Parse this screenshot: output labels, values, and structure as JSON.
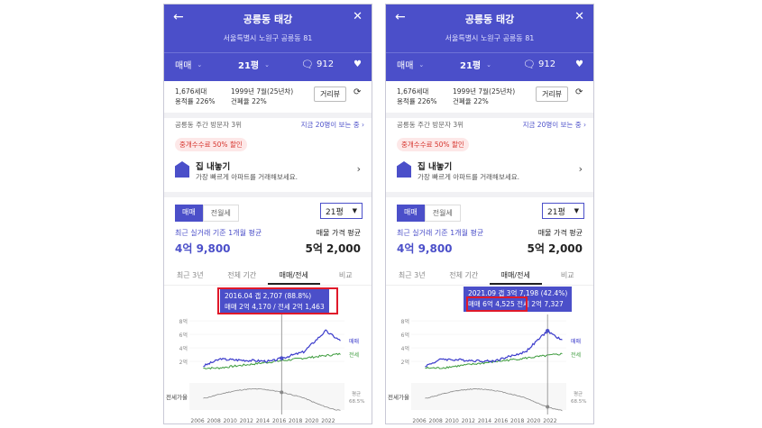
{
  "panels": [
    {
      "header": {
        "title": "공릉동 태강",
        "address": "서울특별시 노원구 공릉동 81",
        "trade_type": "매매",
        "area": "21평",
        "comments": "912"
      },
      "info": {
        "households": "1,676세대",
        "far": "용적률 226%",
        "built": "1999년 7월(25년차)",
        "bcr": "건폐율 22%",
        "distance_btn": "거리뷰"
      },
      "visit": {
        "rank": "공릉동 주간 방문자 3위",
        "now": "지금 20명이 보는 중"
      },
      "promo": "중개수수료 50% 할인",
      "sell": {
        "title": "집 내놓기",
        "desc": "가장 빠르게 아파트를 거래해보세요."
      },
      "trade_tabs": [
        "매매",
        "전월세"
      ],
      "area_select": "21평",
      "avg_label": "최근 실거래 기준 1개월 평균",
      "avg_value": "4억 9,800",
      "ask_label": "매물 가격 평균",
      "ask_value": "5억 2,000",
      "period_tabs": [
        "최근 3년",
        "전체 기간",
        "매매/전세",
        "비교"
      ],
      "active_period_tab": 2,
      "tooltip": {
        "line1": "2016.04  갭 2,707 (88.8%)",
        "line2": "매매 2억 4,170 / 전세 2억 1,463"
      },
      "cursor_year": 2016.3
    },
    {
      "header": {
        "title": "공릉동 태강",
        "address": "서울특별시 노원구 공릉동 81",
        "trade_type": "매매",
        "area": "21평",
        "comments": "912"
      },
      "info": {
        "households": "1,676세대",
        "far": "용적률 226%",
        "built": "1999년 7월(25년차)",
        "bcr": "건폐율 22%",
        "distance_btn": "거리뷰"
      },
      "visit": {
        "rank": "공릉동 주간 방문자 3위",
        "now": "지금 20명이 보는 중"
      },
      "promo": "중개수수료 50% 할인",
      "sell": {
        "title": "집 내놓기",
        "desc": "가장 빠르게 아파트를 거래해보세요."
      },
      "trade_tabs": [
        "매매",
        "전월세"
      ],
      "area_select": "21평",
      "avg_label": "최근 실거래 기준 1개월 평균",
      "avg_value": "4억 9,800",
      "ask_label": "매물 가격 평균",
      "ask_value": "5억 2,000",
      "period_tabs": [
        "최근 3년",
        "전체 기간",
        "매매/전세",
        "비교"
      ],
      "active_period_tab": 2,
      "tooltip": {
        "line1": "2021.09  갭 3억 7,198 (42.4%)",
        "line2a": "매매 6억 4,525",
        "line2b": " 전세 2억 7,327"
      },
      "cursor_year": 2021.7
    }
  ],
  "chart_axes": {
    "y_ticks": [
      "8억",
      "6억",
      "4억",
      "2억"
    ],
    "x_ticks": [
      "2006",
      "2008",
      "2010",
      "2012",
      "2014",
      "2016",
      "2018",
      "2020",
      "2022"
    ],
    "ratio_label": "전세가율",
    "avg_label": "평균",
    "avg_ratio": "68.5%",
    "sale_label": "매매",
    "rent_label": "전세"
  },
  "colors": {
    "brand": "#4b4fc9",
    "rent": "#3a9a3a",
    "highlight": "#e0192a"
  }
}
